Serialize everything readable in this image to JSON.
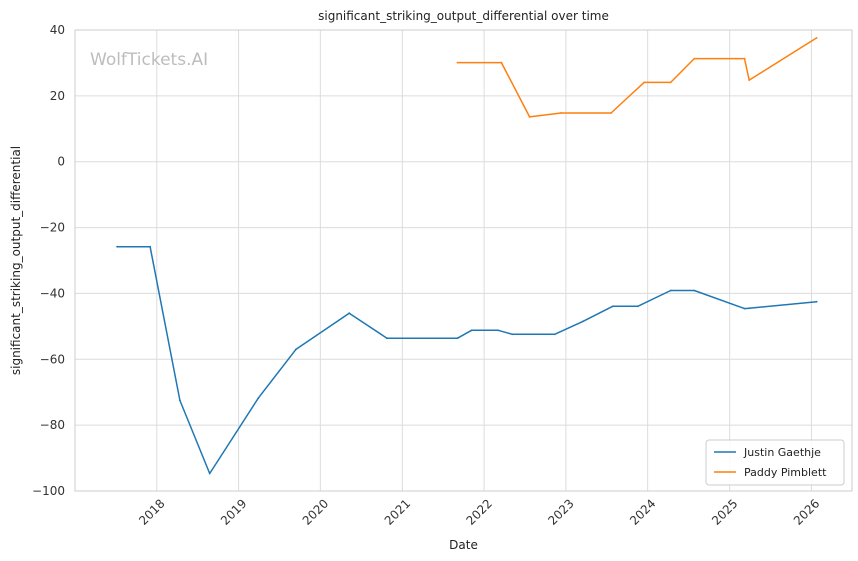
{
  "chart_data": {
    "type": "line",
    "title": "significant_striking_output_differential over time",
    "xlabel": "Date",
    "ylabel": "significant_striking_output_differential",
    "watermark": "WolfTickets.AI",
    "xlim": [
      "2017-01-01",
      "2026-07-01"
    ],
    "ylim": [
      -100,
      40
    ],
    "x_ticks": [
      "2018",
      "2019",
      "2020",
      "2021",
      "2022",
      "2023",
      "2024",
      "2025",
      "2026"
    ],
    "y_ticks": [
      40,
      20,
      0,
      -20,
      -40,
      -60,
      -80,
      -100
    ],
    "y_tick_labels": [
      "40",
      "20",
      "0",
      "−20",
      "−40",
      "−60",
      "−80",
      "−100"
    ],
    "grid": true,
    "legend_position": "lower-right",
    "series": [
      {
        "name": "Justin Gaethje",
        "color": "#1f77b4",
        "points": [
          {
            "x": "2017-07-08",
            "y": -25.8
          },
          {
            "x": "2017-12-02",
            "y": -25.8
          },
          {
            "x": "2018-04-14",
            "y": -72.5
          },
          {
            "x": "2018-08-25",
            "y": -94.7
          },
          {
            "x": "2019-03-30",
            "y": -71.8
          },
          {
            "x": "2019-09-14",
            "y": -57.0
          },
          {
            "x": "2020-05-09",
            "y": -46.0
          },
          {
            "x": "2020-10-24",
            "y": -53.6
          },
          {
            "x": "2021-09-04",
            "y": -53.6
          },
          {
            "x": "2021-11-06",
            "y": -51.2
          },
          {
            "x": "2022-03-05",
            "y": -51.2
          },
          {
            "x": "2022-05-07",
            "y": -52.4
          },
          {
            "x": "2022-11-12",
            "y": -52.4
          },
          {
            "x": "2023-03-18",
            "y": -48.5
          },
          {
            "x": "2023-07-29",
            "y": -43.9
          },
          {
            "x": "2023-11-18",
            "y": -43.9
          },
          {
            "x": "2024-04-13",
            "y": -39.1
          },
          {
            "x": "2024-07-27",
            "y": -39.1
          },
          {
            "x": "2025-03-08",
            "y": -44.6
          },
          {
            "x": "2025-03-29",
            "y": -44.5
          },
          {
            "x": "2026-01-24",
            "y": -42.5
          }
        ]
      },
      {
        "name": "Paddy Pimblett",
        "color": "#ff7f0e",
        "points": [
          {
            "x": "2021-09-04",
            "y": 30.1
          },
          {
            "x": "2022-03-19",
            "y": 30.1
          },
          {
            "x": "2022-07-23",
            "y": 13.6
          },
          {
            "x": "2022-12-10",
            "y": 14.8
          },
          {
            "x": "2023-07-22",
            "y": 14.8
          },
          {
            "x": "2023-12-16",
            "y": 24.1
          },
          {
            "x": "2024-04-13",
            "y": 24.1
          },
          {
            "x": "2024-07-27",
            "y": 31.3
          },
          {
            "x": "2025-03-08",
            "y": 31.3
          },
          {
            "x": "2025-03-29",
            "y": 24.8
          },
          {
            "x": "2026-01-24",
            "y": 37.6
          }
        ]
      }
    ]
  }
}
